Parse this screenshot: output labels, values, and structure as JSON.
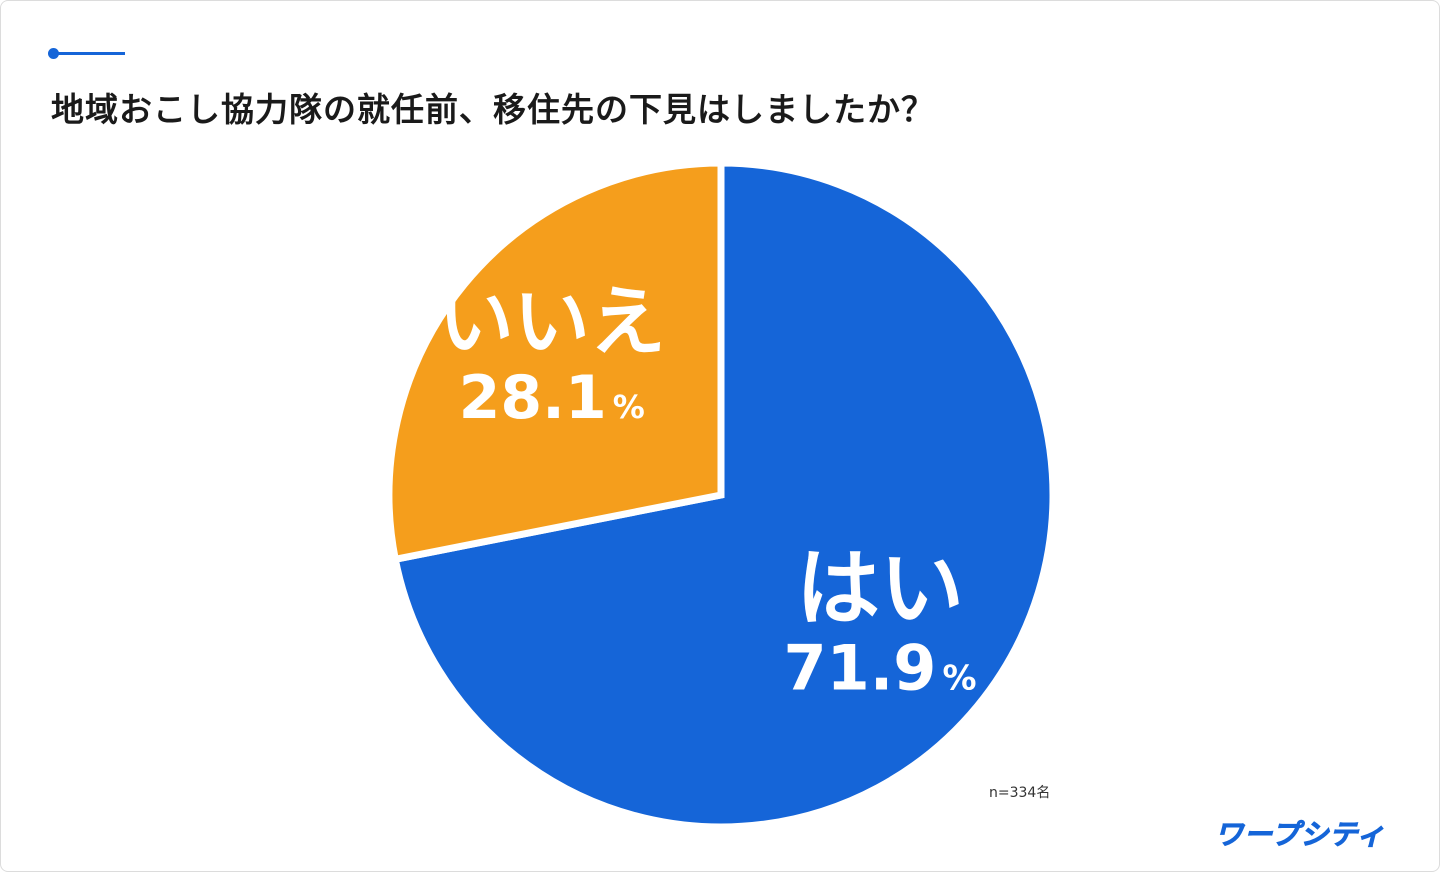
{
  "title": "地域おこし協力隊の就任前、移住先の下見はしましたか？",
  "sample_size": "n=334名",
  "brand": "ワープシティ",
  "colors": {
    "accent": "#1565d8",
    "yes": "#1565d8",
    "no": "#f59e1c",
    "separator": "#ffffff"
  },
  "chart_data": {
    "type": "pie",
    "title": "地域おこし協力隊の就任前、移住先の下見はしましたか？",
    "start": "12 o'clock",
    "direction": "clockwise",
    "slices": [
      {
        "label": "はい",
        "value": 71.9,
        "value_text": "71.9",
        "unit": "%",
        "color": "#1565d8"
      },
      {
        "label": "いいえ",
        "value": 28.1,
        "value_text": "28.1",
        "unit": "%",
        "color": "#f59e1c"
      }
    ]
  }
}
